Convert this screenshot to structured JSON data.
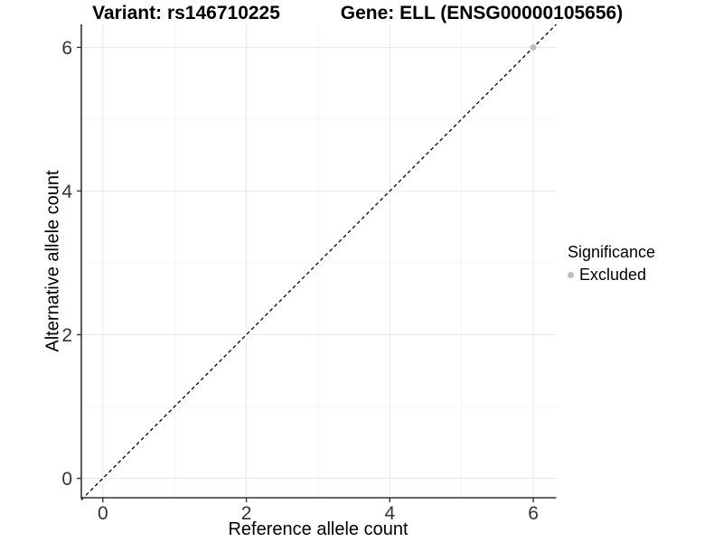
{
  "chart_data": {
    "type": "scatter",
    "title_left": "Variant: rs146710225",
    "title_right": "Gene: ELL (ENSG00000105656)",
    "xlabel": "Reference allele count",
    "ylabel": "Alternative allele count",
    "xlim": [
      -0.3,
      6.32
    ],
    "ylim": [
      -0.27,
      6.32
    ],
    "x_ticks": [
      0,
      2,
      4,
      6
    ],
    "y_ticks": [
      0,
      2,
      4,
      6
    ],
    "x_minor_ticks": [
      1,
      3,
      5
    ],
    "y_minor_ticks": [
      1,
      3,
      5
    ],
    "grid": {
      "major": true,
      "minor": true
    },
    "reference_line": {
      "type": "identity y=x",
      "linestyle": "dashed",
      "color": "#000000"
    },
    "series": [
      {
        "name": "Excluded",
        "color": "#bebebe",
        "marker": "circle",
        "points": [
          [
            6,
            6
          ]
        ]
      }
    ],
    "legend": {
      "position": "right",
      "title": "Significance",
      "entries": [
        {
          "label": "Excluded",
          "color": "#bebebe"
        }
      ]
    },
    "colors": {
      "background": "#ffffff",
      "grid_major": "#e9e9e9",
      "grid_minor": "#f5f5f5",
      "axis_line": "#333333",
      "tick_text": "#333333",
      "title_text": "#000000"
    }
  }
}
